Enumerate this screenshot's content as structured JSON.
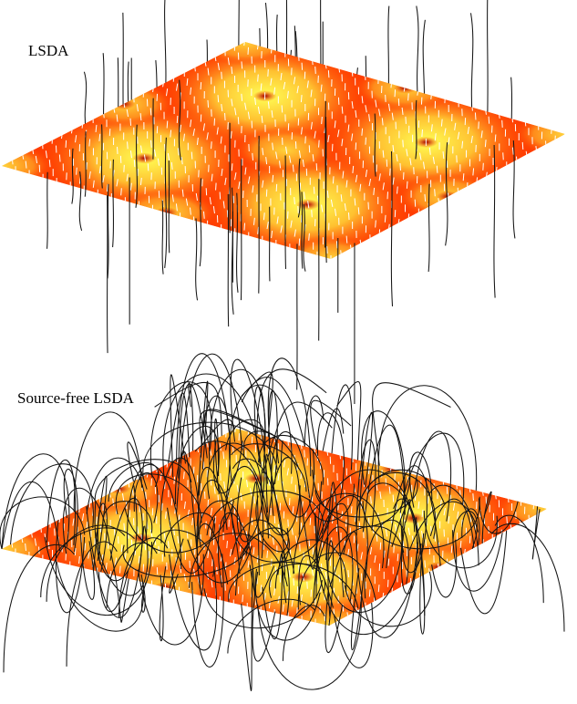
{
  "panels": [
    {
      "id": "lsda",
      "label": "LSDA",
      "field_style": "vertical"
    },
    {
      "id": "source-free",
      "label": "Source-free LSDA",
      "field_style": "loops"
    }
  ],
  "colors": {
    "background": "#ffffff",
    "surface_high": "#ffff66",
    "surface_mid": "#ffa020",
    "surface_low": "#ff2a00",
    "core": "#b80000",
    "field_lines": "#141414",
    "arrows": "#ffffff"
  }
}
